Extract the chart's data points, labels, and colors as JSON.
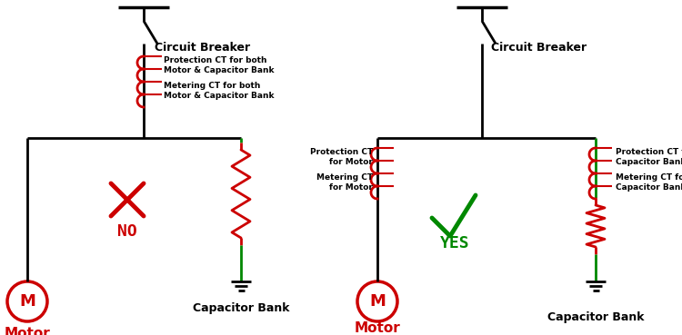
{
  "bg_color": "#ffffff",
  "line_color_black": "#000000",
  "line_color_red": "#cc0000",
  "line_color_green": "#008800",
  "cb_label": "Circuit Breaker",
  "motor_label": "Motor",
  "cap_label": "Capacitor Bank",
  "no_label": "NO",
  "yes_label": "YES",
  "left_prot_label": "Protection CT for both\nMotor & Capacitor Bank",
  "left_meter_label": "Metering CT for both\nMotor & Capacitor Bank",
  "right_prot_motor_label": "Protection CT\nfor Motor",
  "right_meter_motor_label": "Metering CT\nfor Motor",
  "right_prot_cap_label": "Protection CT for\nCapacitor Bank",
  "right_meter_cap_label": "Metering CT for\nCapacitor Bank",
  "lw": 2.0,
  "lw_thick": 2.5
}
